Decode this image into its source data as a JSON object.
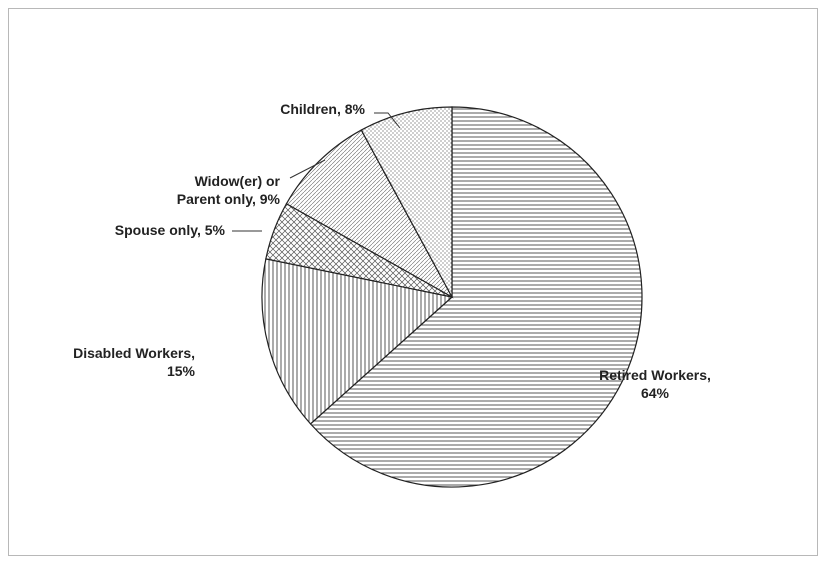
{
  "chart_data": {
    "type": "pie",
    "title": "",
    "start_angle_deg": 90,
    "direction": "clockwise",
    "slices": [
      {
        "label": "Retired Workers, 64%",
        "value": 64,
        "pattern": "horizontal"
      },
      {
        "label": "Disabled Workers, 15%",
        "value": 15,
        "pattern": "vertical"
      },
      {
        "label": "Spouse only, 5%",
        "value": 5,
        "pattern": "crosshatch"
      },
      {
        "label": "Widow(er) or Parent only, 9%",
        "value": 9,
        "pattern": "diagonal"
      },
      {
        "label": "Children, 8%",
        "value": 8,
        "pattern": "dots"
      }
    ]
  }
}
